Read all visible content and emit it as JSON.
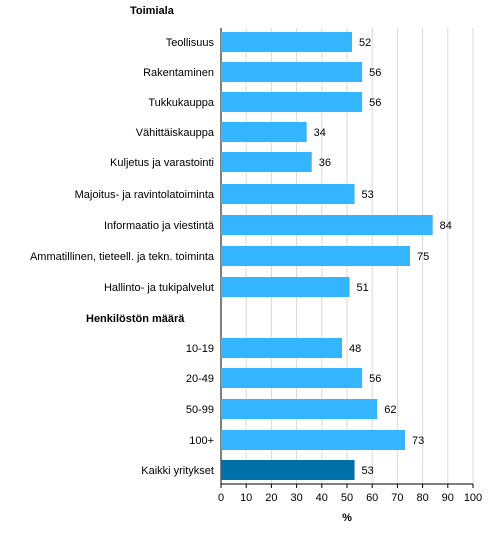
{
  "chart_data": {
    "type": "bar",
    "orientation": "horizontal",
    "groups": [
      {
        "heading": "Toimiala",
        "categories": [
          "Teollisuus",
          "Rakentaminen",
          "Tukkukauppa",
          "Vähittäiskauppa",
          "Kuljetus ja varastointi",
          "Majoitus- ja ravintolatoiminta",
          "Informaatio ja viestintä",
          "Ammatillinen, tieteell. ja tekn. toiminta",
          "Hallinto- ja tukipalvelut"
        ],
        "values": [
          52,
          56,
          56,
          34,
          36,
          53,
          84,
          75,
          51
        ]
      },
      {
        "heading": "Henkilöstön määrä",
        "categories": [
          "10-19",
          "20-49",
          "50-99",
          "100+"
        ],
        "values": [
          48,
          56,
          62,
          73
        ]
      },
      {
        "heading": "",
        "categories": [
          "Kaikki yritykset"
        ],
        "values": [
          53
        ],
        "highlight": true
      }
    ],
    "xlabel": "%",
    "xlim": [
      0,
      100
    ],
    "xticks": [
      0,
      10,
      20,
      30,
      40,
      50,
      60,
      70,
      80,
      90,
      100
    ],
    "grid": "vertical",
    "colors": {
      "bar": "#33b5ff",
      "highlight": "#0070a8",
      "grid": "#d9d9d9",
      "text": "#000000"
    }
  }
}
